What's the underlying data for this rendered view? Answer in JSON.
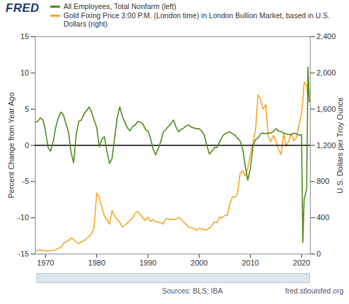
{
  "chart_data": {
    "type": "line",
    "logo": "FRED",
    "legend": "top",
    "ylabel": "Percent Change from Year Ago",
    "y2label": "U.S. Dollars per Troy Ounce",
    "sources": "Sources: BLS; IBA",
    "site": "fred.stlouisfed.org",
    "xlim": [
      1968,
      2021.7
    ],
    "xticks": [
      1970,
      1980,
      1990,
      2000,
      2010,
      2020
    ],
    "ylim": [
      -15,
      15
    ],
    "yticks": [
      -15,
      -10,
      -5,
      0,
      5,
      10,
      15
    ],
    "y2lim": [
      0,
      2400
    ],
    "y2ticks": [
      0,
      400,
      800,
      {
        "value": 1200,
        "label": "1,200"
      },
      {
        "value": 1600,
        "label": "1,600"
      },
      {
        "value": 2000,
        "label": "2,000"
      },
      {
        "value": 2400,
        "label": "2,400"
      }
    ],
    "x": [
      1968.0,
      1968.5,
      1969.0,
      1969.5,
      1970.0,
      1970.5,
      1971.0,
      1971.5,
      1972.0,
      1972.5,
      1973.0,
      1973.5,
      1974.0,
      1974.5,
      1975.0,
      1975.5,
      1976.0,
      1976.5,
      1977.0,
      1977.5,
      1978.0,
      1978.5,
      1979.0,
      1979.5,
      1980.0,
      1980.5,
      1981.0,
      1981.5,
      1982.0,
      1982.5,
      1983.0,
      1983.5,
      1984.0,
      1984.5,
      1985.0,
      1985.5,
      1986.0,
      1986.5,
      1987.0,
      1987.5,
      1988.0,
      1988.5,
      1989.0,
      1989.5,
      1990.0,
      1990.5,
      1991.0,
      1991.5,
      1992.0,
      1992.5,
      1993.0,
      1993.5,
      1994.0,
      1994.5,
      1995.0,
      1995.5,
      1996.0,
      1996.5,
      1997.0,
      1997.5,
      1998.0,
      1998.5,
      1999.0,
      1999.5,
      2000.0,
      2000.5,
      2001.0,
      2001.5,
      2002.0,
      2002.5,
      2003.0,
      2003.5,
      2004.0,
      2004.5,
      2005.0,
      2005.5,
      2006.0,
      2006.5,
      2007.0,
      2007.5,
      2008.0,
      2008.5,
      2009.0,
      2009.5,
      2010.0,
      2010.5,
      2011.0,
      2011.5,
      2012.0,
      2012.5,
      2013.0,
      2013.5,
      2014.0,
      2014.5,
      2015.0,
      2015.5,
      2016.0,
      2016.5,
      2017.0,
      2017.5,
      2018.0,
      2018.5,
      2019.0,
      2019.5,
      2020.0,
      2020.25,
      2020.5,
      2021.0,
      2021.25,
      2021.5
    ],
    "series": [
      {
        "name": "All Employees, Total Nonfarm (left)",
        "color": "#4d8a1b",
        "axis": "y",
        "values": [
          3.2,
          3.3,
          3.8,
          3.5,
          2.0,
          -0.3,
          -0.8,
          0.5,
          2.5,
          3.8,
          4.6,
          4.2,
          3.0,
          1.8,
          -1.0,
          -2.4,
          1.5,
          3.3,
          3.5,
          4.3,
          4.8,
          5.3,
          4.6,
          3.5,
          2.5,
          -0.2,
          0.8,
          1.2,
          -0.8,
          -2.5,
          -1.8,
          1.0,
          3.8,
          5.3,
          4.0,
          3.2,
          2.4,
          2.0,
          2.6,
          2.8,
          3.3,
          3.2,
          3.0,
          2.2,
          2.0,
          1.0,
          -0.5,
          -1.3,
          -0.5,
          0.5,
          1.8,
          2.2,
          2.6,
          3.0,
          3.5,
          2.5,
          1.9,
          2.2,
          2.4,
          2.7,
          2.8,
          2.5,
          2.4,
          2.3,
          2.3,
          2.0,
          1.4,
          0.0,
          -1.2,
          -0.8,
          -0.3,
          -0.3,
          0.5,
          1.2,
          1.6,
          1.7,
          1.9,
          1.6,
          1.4,
          1.0,
          0.6,
          -0.5,
          -2.8,
          -4.8,
          -3.2,
          -0.2,
          0.8,
          1.0,
          1.6,
          1.7,
          1.6,
          1.7,
          1.7,
          1.9,
          2.3,
          2.0,
          1.9,
          1.7,
          1.6,
          1.5,
          1.5,
          1.7,
          1.6,
          1.4,
          1.5,
          -13.4,
          -7.5,
          -6.0,
          10.8,
          6.0
        ]
      },
      {
        "name": "Gold Fixing Price 3:00 P.M. (London time) in London Bullion Market, based in U.S. Dollars (right)",
        "color": "#f5a623",
        "axis": "y2",
        "values": [
          35,
          40,
          42,
          41,
          35,
          36,
          38,
          41,
          48,
          65,
          70,
          115,
          135,
          150,
          175,
          160,
          130,
          115,
          135,
          145,
          170,
          195,
          225,
          290,
          675,
          620,
          520,
          420,
          380,
          330,
          480,
          420,
          380,
          350,
          300,
          320,
          345,
          370,
          400,
          450,
          470,
          440,
          400,
          370,
          410,
          360,
          380,
          360,
          350,
          345,
          330,
          390,
          385,
          385,
          380,
          385,
          405,
          385,
          350,
          325,
          295,
          290,
          285,
          260,
          285,
          280,
          265,
          270,
          285,
          315,
          355,
          350,
          410,
          400,
          425,
          430,
          550,
          630,
          630,
          670,
          890,
          920,
          860,
          950,
          1100,
          1230,
          1360,
          1760,
          1700,
          1600,
          1650,
          1300,
          1240,
          1310,
          1250,
          1150,
          1100,
          1330,
          1190,
          1250,
          1330,
          1250,
          1290,
          1420,
          1560,
          1680,
          1900,
          1860,
          1730,
          1800
        ]
      }
    ]
  }
}
